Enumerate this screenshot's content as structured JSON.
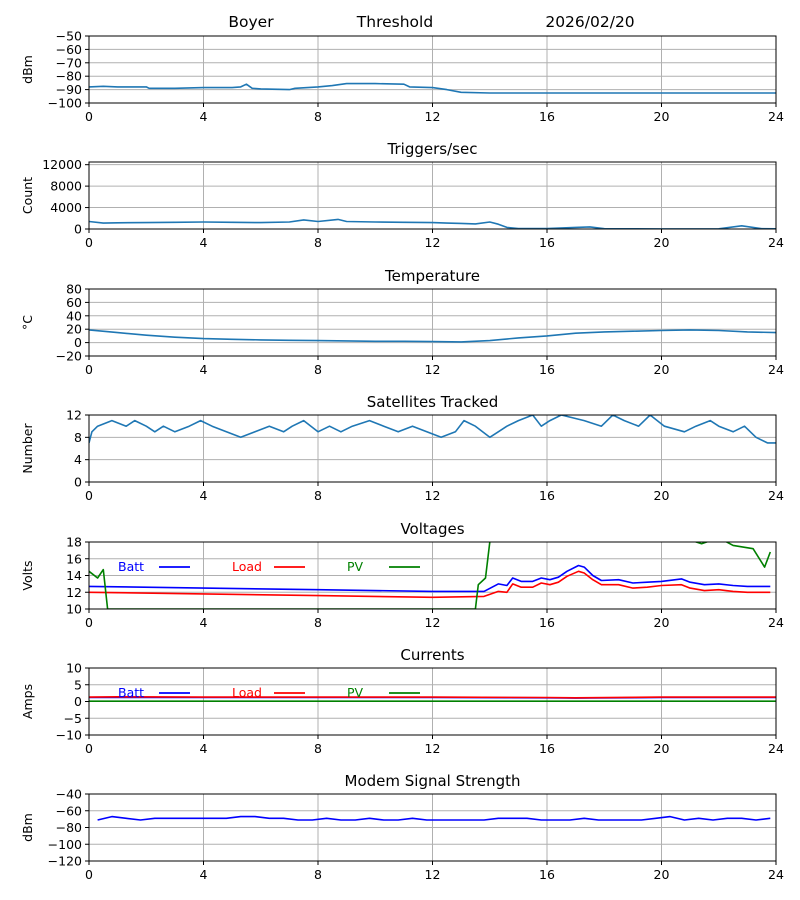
{
  "header": {
    "station": "Boyer",
    "label": "Threshold",
    "date": "2026/02/20"
  },
  "chart_data": [
    {
      "type": "line",
      "title": "",
      "ylabel": "dBm",
      "xlim": [
        0,
        24
      ],
      "ylim": [
        -100,
        -50
      ],
      "xticks": [
        0,
        4,
        8,
        12,
        16,
        20,
        24
      ],
      "yticks": [
        -100,
        -90,
        -80,
        -70,
        -60,
        -50
      ],
      "series": [
        {
          "name": "Threshold",
          "color": "#1f77b4",
          "x": [
            0,
            0.5,
            1,
            2,
            2.1,
            3,
            4,
            5,
            5.3,
            5.5,
            5.7,
            6,
            7,
            7.2,
            8,
            8.5,
            9,
            10,
            11,
            11.2,
            12,
            12.5,
            13,
            14,
            24
          ],
          "y": [
            -88,
            -87.5,
            -88,
            -88,
            -89,
            -89,
            -88.5,
            -88.5,
            -88,
            -86,
            -89,
            -89.5,
            -90,
            -89,
            -88,
            -87,
            -85.5,
            -85.5,
            -86,
            -88,
            -88.5,
            -90,
            -92,
            -92.5,
            -92.5
          ]
        }
      ]
    },
    {
      "type": "line",
      "title": "Triggers/sec",
      "ylabel": "Count",
      "xlim": [
        0,
        24
      ],
      "ylim": [
        0,
        12500
      ],
      "xticks": [
        0,
        4,
        8,
        12,
        16,
        20,
        24
      ],
      "yticks": [
        0,
        4000,
        8000,
        12000
      ],
      "series": [
        {
          "name": "Triggers",
          "color": "#1f77b4",
          "x": [
            0,
            0.5,
            1,
            2,
            3,
            4,
            5,
            6,
            7,
            7.5,
            8,
            8.7,
            9,
            10,
            11,
            12,
            12.5,
            13,
            13.5,
            14,
            14.3,
            14.6,
            15,
            16,
            17,
            17.5,
            18,
            19,
            20,
            21,
            22,
            22.8,
            23.5,
            24
          ],
          "y": [
            1400,
            1100,
            1150,
            1200,
            1250,
            1300,
            1250,
            1200,
            1300,
            1700,
            1400,
            1800,
            1400,
            1300,
            1250,
            1200,
            1100,
            1050,
            950,
            1300,
            900,
            300,
            100,
            100,
            300,
            400,
            50,
            30,
            20,
            20,
            30,
            600,
            50,
            30
          ]
        }
      ]
    },
    {
      "type": "line",
      "title": "Temperature",
      "ylabel": "°C",
      "xlim": [
        0,
        24
      ],
      "ylim": [
        -20,
        80
      ],
      "xticks": [
        0,
        4,
        8,
        12,
        16,
        20,
        24
      ],
      "yticks": [
        -20,
        0,
        20,
        40,
        60,
        80
      ],
      "series": [
        {
          "name": "Temperature",
          "color": "#1f77b4",
          "x": [
            0,
            1,
            2,
            3,
            4,
            5,
            6,
            7,
            8,
            9,
            10,
            11,
            12,
            13,
            14,
            15,
            16,
            17,
            18,
            19,
            20,
            21,
            22,
            23,
            24
          ],
          "y": [
            19,
            15,
            11,
            8,
            6,
            5,
            4,
            3.5,
            3,
            2.5,
            2,
            2,
            1.5,
            1,
            3,
            7,
            10,
            14,
            16,
            17,
            18,
            19,
            18,
            16,
            15
          ]
        }
      ]
    },
    {
      "type": "line",
      "title": "Satellites Tracked",
      "ylabel": "Number",
      "xlim": [
        0,
        24
      ],
      "ylim": [
        0,
        12
      ],
      "xticks": [
        0,
        4,
        8,
        12,
        16,
        20,
        24
      ],
      "yticks": [
        0,
        4,
        8,
        12
      ],
      "series": [
        {
          "name": "Satellites",
          "color": "#1f77b4",
          "x": [
            0,
            0.1,
            0.3,
            0.8,
            1.3,
            1.6,
            2,
            2.3,
            2.6,
            3,
            3.5,
            3.9,
            4.3,
            4.8,
            5.3,
            5.8,
            6.3,
            6.8,
            7.1,
            7.5,
            8,
            8.4,
            8.8,
            9.2,
            9.8,
            10.3,
            10.8,
            11.3,
            11.8,
            12.3,
            12.8,
            13.1,
            13.5,
            14,
            14.3,
            14.6,
            15,
            15.5,
            15.8,
            16.1,
            16.5,
            17.3,
            17.9,
            18.3,
            18.7,
            19.2,
            19.6,
            20.1,
            20.8,
            21.2,
            21.7,
            22,
            22.5,
            22.9,
            23.3,
            23.7,
            24
          ],
          "y": [
            7,
            9,
            10,
            11,
            10,
            11,
            10,
            9,
            10,
            9,
            10,
            11,
            10,
            9,
            8,
            9,
            10,
            9,
            10,
            11,
            9,
            10,
            9,
            10,
            11,
            10,
            9,
            10,
            9,
            8,
            9,
            11,
            10,
            8,
            9,
            10,
            11,
            12,
            10,
            11,
            12,
            11,
            10,
            12,
            11,
            10,
            12,
            10,
            9,
            10,
            11,
            10,
            9,
            10,
            8,
            7,
            7
          ]
        }
      ]
    },
    {
      "type": "line",
      "title": "Voltages",
      "ylabel": "Volts",
      "xlim": [
        0,
        24
      ],
      "ylim": [
        10,
        18
      ],
      "xticks": [
        0,
        4,
        8,
        12,
        16,
        20,
        24
      ],
      "yticks": [
        10,
        12,
        14,
        16,
        18
      ],
      "legend": {
        "placement": "top-left",
        "entries": [
          "Batt",
          "Load",
          "PV"
        ]
      },
      "series": [
        {
          "name": "Batt",
          "color": "#0000ff",
          "x": [
            0,
            4,
            8,
            12,
            13.8,
            14.3,
            14.6,
            14.8,
            15.1,
            15.5,
            15.8,
            16.1,
            16.4,
            16.7,
            17.1,
            17.3,
            17.6,
            17.9,
            18.5,
            19,
            19.5,
            20,
            20.7,
            21,
            21.5,
            22,
            22.5,
            23,
            23.8
          ],
          "y": [
            12.7,
            12.5,
            12.3,
            12.1,
            12.1,
            13.0,
            12.8,
            13.7,
            13.3,
            13.3,
            13.7,
            13.5,
            13.8,
            14.5,
            15.2,
            15.0,
            14.0,
            13.4,
            13.5,
            13.1,
            13.2,
            13.3,
            13.6,
            13.2,
            12.9,
            13.0,
            12.8,
            12.7,
            12.7
          ]
        },
        {
          "name": "Load",
          "color": "#ff0000",
          "x": [
            0,
            4,
            8,
            12,
            13.8,
            14.3,
            14.6,
            14.8,
            15.1,
            15.5,
            15.8,
            16.1,
            16.4,
            16.7,
            17.1,
            17.3,
            17.6,
            17.9,
            18.5,
            19,
            19.5,
            20,
            20.7,
            21,
            21.5,
            22,
            22.5,
            23,
            23.8
          ],
          "y": [
            12.0,
            11.8,
            11.6,
            11.4,
            11.5,
            12.1,
            12.0,
            13.0,
            12.6,
            12.6,
            13.1,
            12.9,
            13.2,
            13.9,
            14.5,
            14.3,
            13.5,
            12.9,
            12.9,
            12.5,
            12.6,
            12.8,
            12.9,
            12.5,
            12.2,
            12.3,
            12.1,
            12.0,
            12.0
          ]
        },
        {
          "name": "PV",
          "color": "#008000",
          "x": [
            0,
            0.3,
            0.5,
            0.65,
            13.5,
            13.6,
            13.85,
            14,
            14.2,
            20.3,
            21.4,
            22,
            22.5,
            23.2,
            23.6,
            23.8
          ],
          "y": [
            14.5,
            13.7,
            14.7,
            10,
            10,
            12.9,
            13.7,
            18,
            19,
            19,
            17.8,
            18.5,
            17.6,
            17.2,
            15.0,
            16.8
          ]
        }
      ]
    },
    {
      "type": "line",
      "title": "Currents",
      "ylabel": "Amps",
      "xlim": [
        0,
        24
      ],
      "ylim": [
        -10,
        10
      ],
      "xticks": [
        0,
        4,
        8,
        12,
        16,
        20,
        24
      ],
      "yticks": [
        -10,
        -5,
        0,
        5,
        10
      ],
      "legend": {
        "placement": "top-left",
        "entries": [
          "Batt",
          "Load",
          "PV"
        ]
      },
      "series": [
        {
          "name": "Batt",
          "color": "#0000ff",
          "x": [
            0,
            4,
            8,
            12,
            16,
            17,
            20,
            24
          ],
          "y": [
            1.2,
            1.2,
            1.2,
            1.2,
            1.1,
            1.0,
            1.2,
            1.2
          ]
        },
        {
          "name": "Load",
          "color": "#ff0000",
          "x": [
            0,
            1,
            4,
            8,
            12,
            16,
            17,
            20,
            24
          ],
          "y": [
            1.3,
            1.4,
            1.3,
            1.3,
            1.3,
            1.2,
            1.1,
            1.3,
            1.3
          ]
        },
        {
          "name": "PV",
          "color": "#008000",
          "x": [
            0,
            24
          ],
          "y": [
            0.1,
            0.1
          ]
        }
      ]
    },
    {
      "type": "line",
      "title": "Modem Signal Strength",
      "ylabel": "dBm",
      "xlim": [
        0,
        24
      ],
      "ylim": [
        -120,
        -40
      ],
      "xticks": [
        0,
        4,
        8,
        12,
        16,
        20,
        24
      ],
      "yticks": [
        -120,
        -100,
        -80,
        -60,
        -40
      ],
      "series": [
        {
          "name": "Modem",
          "color": "#0000ff",
          "x": [
            0.3,
            0.8,
            1.3,
            1.8,
            2.3,
            2.8,
            3.3,
            3.8,
            4.3,
            4.8,
            5.3,
            5.8,
            6.3,
            6.8,
            7.3,
            7.8,
            8.3,
            8.8,
            9.3,
            9.8,
            10.3,
            10.8,
            11.3,
            11.8,
            12.3,
            12.8,
            13.3,
            13.8,
            14.3,
            14.8,
            15.3,
            15.8,
            16.3,
            16.8,
            17.3,
            17.8,
            18.3,
            18.8,
            19.3,
            19.8,
            20.3,
            20.8,
            21.3,
            21.8,
            22.3,
            22.8,
            23.3,
            23.8
          ],
          "y": [
            -71,
            -67,
            -69,
            -71,
            -69,
            -69,
            -69,
            -69,
            -69,
            -69,
            -67,
            -67,
            -69,
            -69,
            -71,
            -71,
            -69,
            -71,
            -71,
            -69,
            -71,
            -71,
            -69,
            -71,
            -71,
            -71,
            -71,
            -71,
            -69,
            -69,
            -69,
            -71,
            -71,
            -71,
            -69,
            -71,
            -71,
            -71,
            -71,
            -69,
            -67,
            -71,
            -69,
            -71,
            -69,
            -69,
            -71,
            -69
          ]
        }
      ]
    }
  ]
}
